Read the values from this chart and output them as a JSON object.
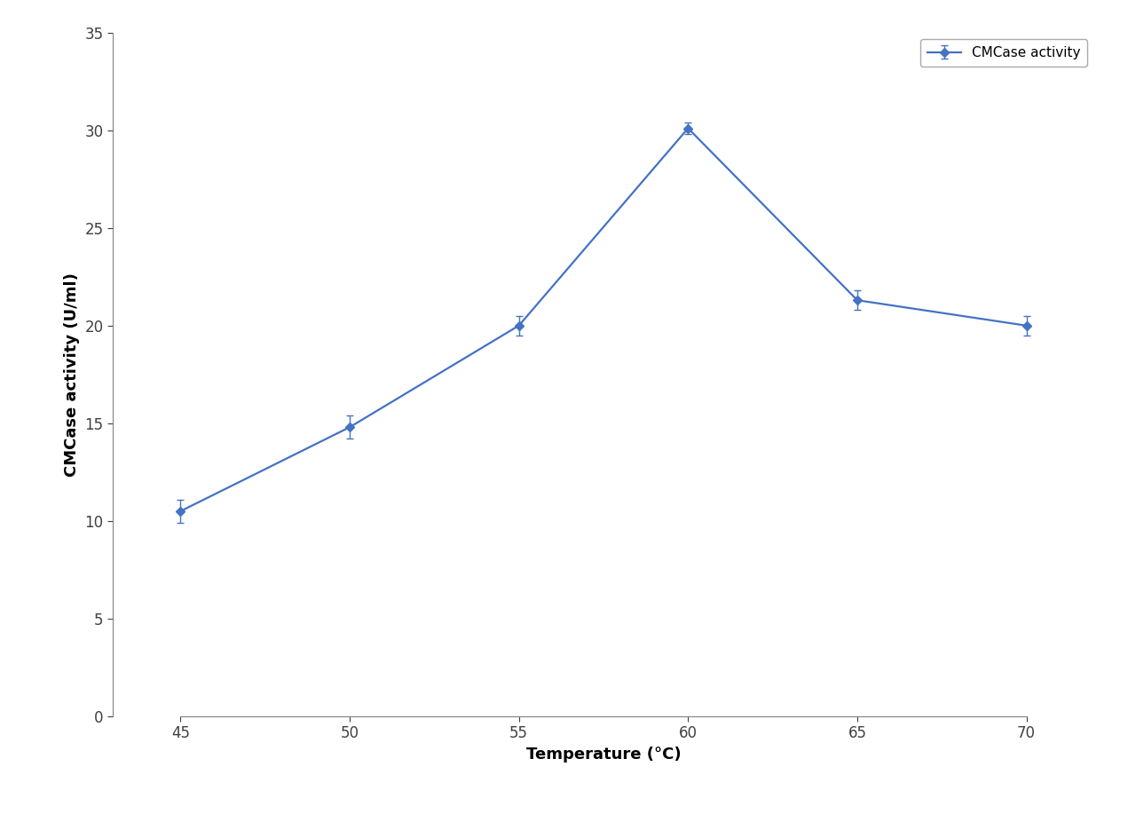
{
  "x": [
    45,
    50,
    55,
    60,
    65,
    70
  ],
  "y": [
    10.5,
    14.8,
    20.0,
    30.1,
    21.3,
    20.0
  ],
  "yerr": [
    0.6,
    0.6,
    0.5,
    0.3,
    0.5,
    0.5
  ],
  "line_color": "#4472C4",
  "marker": "D",
  "marker_size": 5,
  "line_width": 1.6,
  "xlabel": "Temperature (°C)",
  "ylabel": "CMCase activity (U/ml)",
  "xlim": [
    43,
    72
  ],
  "ylim": [
    0,
    35
  ],
  "yticks": [
    0,
    5,
    10,
    15,
    20,
    25,
    30,
    35
  ],
  "xticks": [
    45,
    50,
    55,
    60,
    65,
    70
  ],
  "legend_label": "CMCase activity",
  "background_color": "#ffffff",
  "xlabel_fontsize": 13,
  "ylabel_fontsize": 13,
  "tick_fontsize": 12,
  "legend_fontsize": 11,
  "spine_color": "#808080",
  "tick_color": "#404040"
}
